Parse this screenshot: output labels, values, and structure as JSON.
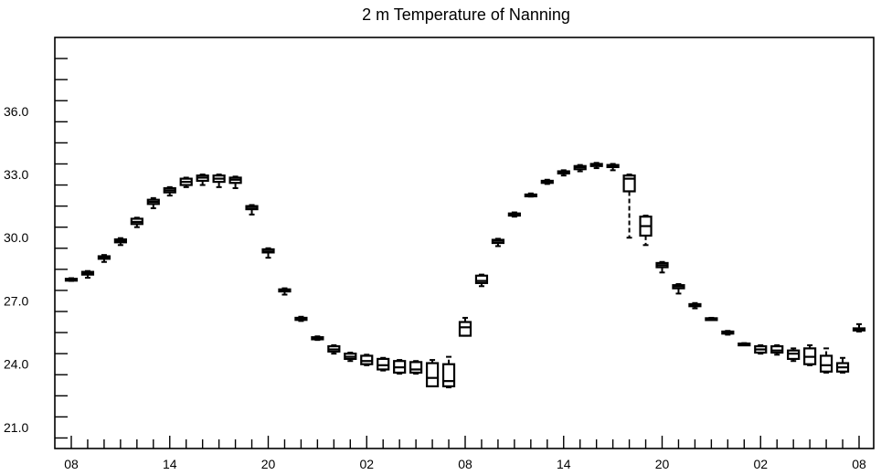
{
  "chart_data": {
    "type": "boxplot",
    "title": "2 m Temperature of Nanning",
    "xlabel": "",
    "ylabel": "",
    "ylim": [
      20.0,
      39.5
    ],
    "y_ticks": [
      21.0,
      24.0,
      27.0,
      30.0,
      33.0,
      36.0
    ],
    "y_tick_labels": [
      "21.0",
      "24.0",
      "27.0",
      "30.0",
      "33.0",
      "36.0"
    ],
    "x_tick_labels": [
      "08",
      "14",
      "20",
      "02",
      "08",
      "14",
      "20",
      "02",
      "08"
    ],
    "x_tick_hours": [
      0,
      6,
      12,
      18,
      24,
      30,
      36,
      42,
      48
    ],
    "grid": false,
    "boxes": [
      {
        "hour": 0,
        "whisker_low": 27.95,
        "q1": 27.97,
        "median": 28.0,
        "q3": 28.05,
        "whisker_high": 28.08
      },
      {
        "hour": 1,
        "whisker_low": 28.1,
        "q1": 28.25,
        "median": 28.3,
        "q3": 28.38,
        "whisker_high": 28.42
      },
      {
        "hour": 2,
        "whisker_low": 28.85,
        "q1": 29.0,
        "median": 29.05,
        "q3": 29.12,
        "whisker_high": 29.18
      },
      {
        "hour": 3,
        "whisker_low": 29.65,
        "q1": 29.78,
        "median": 29.85,
        "q3": 29.92,
        "whisker_high": 29.98
      },
      {
        "hour": 4,
        "whisker_low": 30.5,
        "q1": 30.65,
        "median": 30.75,
        "q3": 30.9,
        "whisker_high": 30.95
      },
      {
        "hour": 5,
        "whisker_low": 31.4,
        "q1": 31.6,
        "median": 31.7,
        "q3": 31.8,
        "whisker_high": 31.88
      },
      {
        "hour": 6,
        "whisker_low": 32.0,
        "q1": 32.15,
        "median": 32.25,
        "q3": 32.35,
        "whisker_high": 32.4
      },
      {
        "hour": 7,
        "whisker_low": 32.4,
        "q1": 32.5,
        "median": 32.65,
        "q3": 32.8,
        "whisker_high": 32.85
      },
      {
        "hour": 8,
        "whisker_low": 32.5,
        "q1": 32.7,
        "median": 32.85,
        "q3": 32.95,
        "whisker_high": 33.0
      },
      {
        "hour": 9,
        "whisker_low": 32.4,
        "q1": 32.65,
        "median": 32.8,
        "q3": 32.95,
        "whisker_high": 33.0
      },
      {
        "hour": 10,
        "whisker_low": 32.35,
        "q1": 32.6,
        "median": 32.75,
        "q3": 32.85,
        "whisker_high": 32.9
      },
      {
        "hour": 11,
        "whisker_low": 31.1,
        "q1": 31.35,
        "median": 31.45,
        "q3": 31.5,
        "whisker_high": 31.55
      },
      {
        "hour": 12,
        "whisker_low": 29.05,
        "q1": 29.3,
        "median": 29.35,
        "q3": 29.45,
        "whisker_high": 29.5
      },
      {
        "hour": 13,
        "whisker_low": 27.3,
        "q1": 27.45,
        "median": 27.5,
        "q3": 27.55,
        "whisker_high": 27.6
      },
      {
        "hour": 14,
        "whisker_low": 26.05,
        "q1": 26.1,
        "median": 26.15,
        "q3": 26.2,
        "whisker_high": 26.25
      },
      {
        "hour": 15,
        "whisker_low": 25.15,
        "q1": 25.18,
        "median": 25.22,
        "q3": 25.28,
        "whisker_high": 25.32
      },
      {
        "hour": 16,
        "whisker_low": 24.5,
        "q1": 24.6,
        "median": 24.7,
        "q3": 24.85,
        "whisker_high": 24.9
      },
      {
        "hour": 17,
        "whisker_low": 24.15,
        "q1": 24.25,
        "median": 24.35,
        "q3": 24.5,
        "whisker_high": 24.55
      },
      {
        "hour": 18,
        "whisker_low": 23.95,
        "q1": 24.0,
        "median": 24.15,
        "q3": 24.4,
        "whisker_high": 24.45
      },
      {
        "hour": 19,
        "whisker_low": 23.7,
        "q1": 23.75,
        "median": 23.95,
        "q3": 24.25,
        "whisker_high": 24.3
      },
      {
        "hour": 20,
        "whisker_low": 23.55,
        "q1": 23.6,
        "median": 23.85,
        "q3": 24.15,
        "whisker_high": 24.2
      },
      {
        "hour": 21,
        "whisker_low": 23.55,
        "q1": 23.6,
        "median": 23.75,
        "q3": 24.1,
        "whisker_high": 24.15
      },
      {
        "hour": 22,
        "whisker_low": 22.95,
        "q1": 22.95,
        "median": 23.35,
        "q3": 24.05,
        "whisker_high": 24.2
      },
      {
        "hour": 23,
        "whisker_low": 22.9,
        "q1": 22.95,
        "median": 23.2,
        "q3": 24.0,
        "whisker_high": 24.35
      },
      {
        "hour": 24,
        "whisker_low": 25.35,
        "q1": 25.35,
        "median": 25.75,
        "q3": 26.0,
        "whisker_high": 26.2
      },
      {
        "hour": 25,
        "whisker_low": 27.7,
        "q1": 27.85,
        "median": 27.95,
        "q3": 28.2,
        "whisker_high": 28.25
      },
      {
        "hour": 26,
        "whisker_low": 29.6,
        "q1": 29.75,
        "median": 29.85,
        "q3": 29.9,
        "whisker_high": 29.95
      },
      {
        "hour": 27,
        "whisker_low": 31.0,
        "q1": 31.05,
        "median": 31.1,
        "q3": 31.15,
        "whisker_high": 31.2
      },
      {
        "hour": 28,
        "whisker_low": 31.95,
        "q1": 32.0,
        "median": 32.0,
        "q3": 32.05,
        "whisker_high": 32.1
      },
      {
        "hour": 29,
        "whisker_low": 32.55,
        "q1": 32.6,
        "median": 32.65,
        "q3": 32.7,
        "whisker_high": 32.75
      },
      {
        "hour": 30,
        "whisker_low": 32.95,
        "q1": 33.05,
        "median": 33.1,
        "q3": 33.15,
        "whisker_high": 33.2
      },
      {
        "hour": 31,
        "whisker_low": 33.15,
        "q1": 33.25,
        "median": 33.35,
        "q3": 33.4,
        "whisker_high": 33.45
      },
      {
        "hour": 32,
        "whisker_low": 33.3,
        "q1": 33.4,
        "median": 33.45,
        "q3": 33.5,
        "whisker_high": 33.55
      },
      {
        "hour": 33,
        "whisker_low": 33.2,
        "q1": 33.35,
        "median": 33.4,
        "q3": 33.45,
        "whisker_high": 33.5
      },
      {
        "hour": 34,
        "whisker_low": 30.0,
        "q1": 32.2,
        "median": 32.8,
        "q3": 32.95,
        "whisker_high": 33.0
      },
      {
        "hour": 35,
        "whisker_low": 29.65,
        "q1": 30.1,
        "median": 30.55,
        "q3": 31.0,
        "whisker_high": 31.05
      },
      {
        "hour": 36,
        "whisker_low": 28.35,
        "q1": 28.6,
        "median": 28.7,
        "q3": 28.8,
        "whisker_high": 28.85
      },
      {
        "hour": 37,
        "whisker_low": 27.35,
        "q1": 27.6,
        "median": 27.7,
        "q3": 27.75,
        "whisker_high": 27.8
      },
      {
        "hour": 38,
        "whisker_low": 26.65,
        "q1": 26.75,
        "median": 26.8,
        "q3": 26.85,
        "whisker_high": 26.9
      },
      {
        "hour": 39,
        "whisker_low": 26.1,
        "q1": 26.13,
        "median": 26.15,
        "q3": 26.18,
        "whisker_high": 26.2
      },
      {
        "hour": 40,
        "whisker_low": 25.4,
        "q1": 25.45,
        "median": 25.5,
        "q3": 25.55,
        "whisker_high": 25.58
      },
      {
        "hour": 41,
        "whisker_low": 24.9,
        "q1": 24.92,
        "median": 24.95,
        "q3": 24.98,
        "whisker_high": 25.0
      },
      {
        "hour": 42,
        "whisker_low": 24.5,
        "q1": 24.55,
        "median": 24.7,
        "q3": 24.85,
        "whisker_high": 24.9
      },
      {
        "hour": 43,
        "whisker_low": 24.45,
        "q1": 24.55,
        "median": 24.65,
        "q3": 24.85,
        "whisker_high": 24.9
      },
      {
        "hour": 44,
        "whisker_low": 24.15,
        "q1": 24.25,
        "median": 24.5,
        "q3": 24.65,
        "whisker_high": 24.75
      },
      {
        "hour": 45,
        "whisker_low": 23.95,
        "q1": 24.0,
        "median": 24.35,
        "q3": 24.75,
        "whisker_high": 24.9
      },
      {
        "hour": 46,
        "whisker_low": 23.6,
        "q1": 23.65,
        "median": 23.95,
        "q3": 24.4,
        "whisker_high": 24.75
      },
      {
        "hour": 47,
        "whisker_low": 23.6,
        "q1": 23.65,
        "median": 23.85,
        "q3": 24.05,
        "whisker_high": 24.3
      },
      {
        "hour": 48,
        "whisker_low": 25.55,
        "q1": 25.6,
        "median": 25.65,
        "q3": 25.7,
        "whisker_high": 25.9
      }
    ]
  }
}
